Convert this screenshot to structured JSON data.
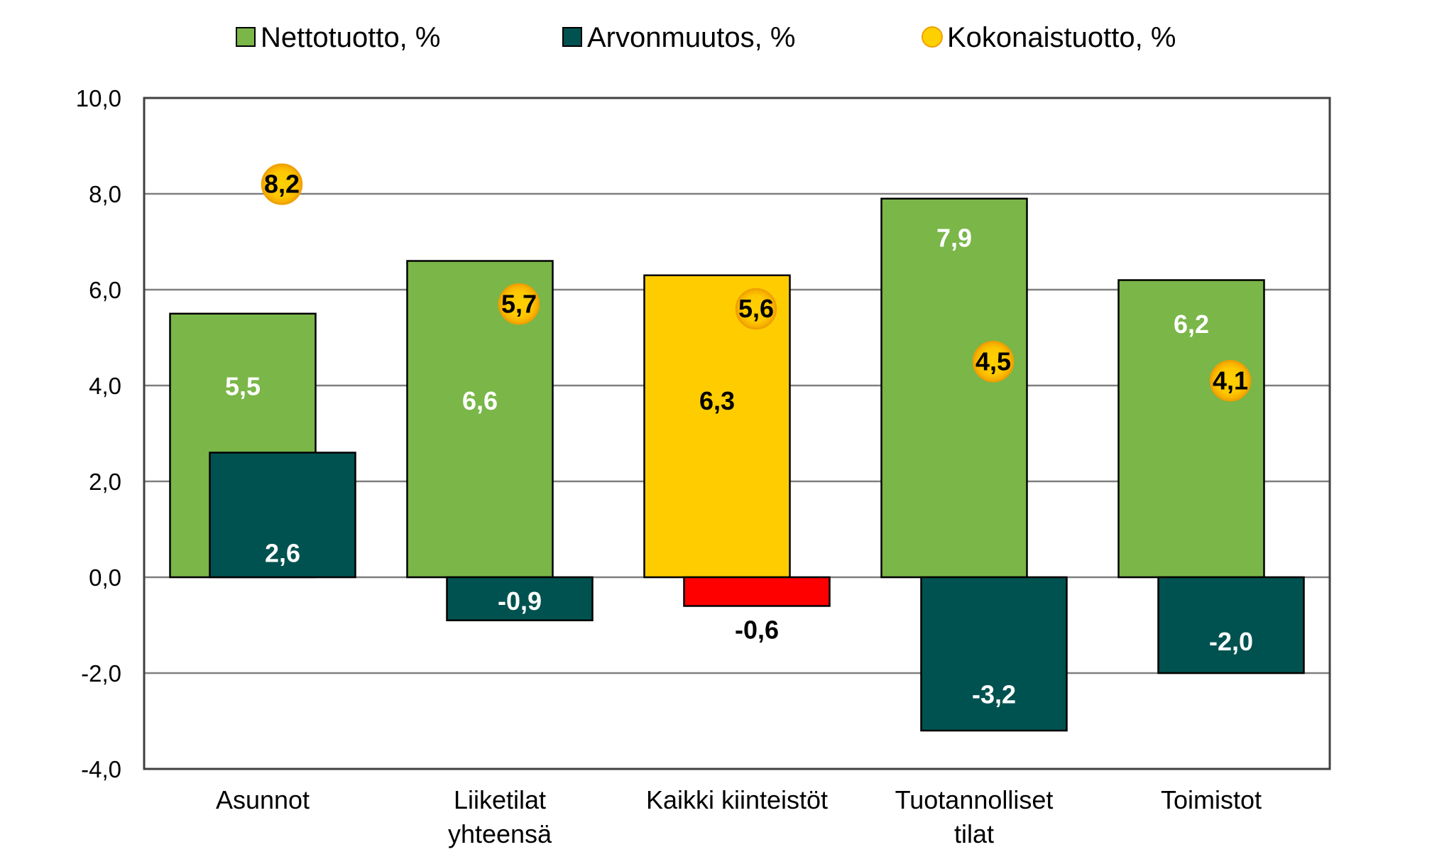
{
  "chart_data": {
    "type": "bar",
    "title": "",
    "xlabel": "",
    "ylabel": "",
    "categories": [
      [
        "Asunnot"
      ],
      [
        "Liiketilat",
        "yhteensä"
      ],
      [
        "Kaikki kiinteistöt"
      ],
      [
        "Tuotannolliset",
        "tilat"
      ],
      [
        "Toimistot"
      ]
    ],
    "ylim": [
      -4.0,
      10.0
    ],
    "yticks": [
      -4.0,
      -2.0,
      0.0,
      2.0,
      4.0,
      6.0,
      8.0,
      10.0
    ],
    "ytick_labels": [
      "-4,0",
      "-2,0",
      "0,0",
      "2,0",
      "4,0",
      "6,0",
      "8,0",
      "10,0"
    ],
    "grid": true,
    "legend_position": "top",
    "series": [
      {
        "name": "Nettotuotto, %",
        "kind": "bar",
        "color": "#7ab648",
        "highlight_color": "#ffcc00",
        "highlight_index": 2,
        "values": [
          5.5,
          6.6,
          6.3,
          7.9,
          6.2
        ],
        "labels": [
          "5,5",
          "6,6",
          "6,3",
          "7,9",
          "6,2"
        ]
      },
      {
        "name": "Arvonmuutos, %",
        "kind": "bar",
        "color": "#005250",
        "highlight_color": "#ff0000",
        "highlight_index": 2,
        "values": [
          2.6,
          -0.9,
          -0.6,
          -3.2,
          -2.0
        ],
        "labels": [
          "2,6",
          "-0,9",
          "-0,6",
          "-3,2",
          "-2,0"
        ]
      },
      {
        "name": "Kokonaistuotto, %",
        "kind": "marker",
        "color": "#ffd000",
        "values": [
          8.2,
          5.7,
          5.6,
          4.5,
          4.1
        ],
        "labels": [
          "8,2",
          "5,7",
          "5,6",
          "4,5",
          "4,1"
        ]
      }
    ]
  }
}
